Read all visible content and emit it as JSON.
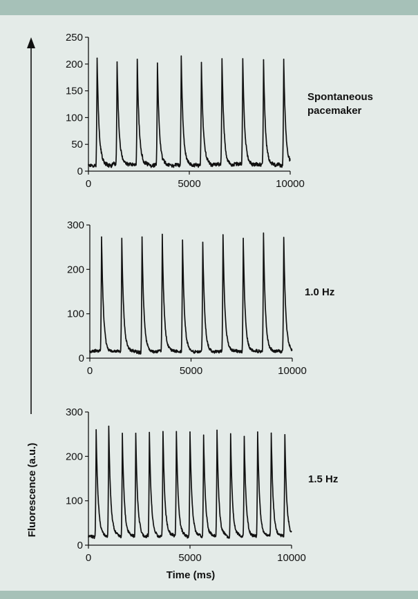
{
  "chart_data": {
    "type": "line",
    "y_axis_title": "Fluorescence (a.u.)",
    "x_axis_title": "Time (ms)",
    "panels": [
      {
        "label_lines": [
          "Spontaneous",
          "pacemaker"
        ],
        "xlim": [
          0,
          10000
        ],
        "ylim": [
          0,
          250
        ],
        "yticks": [
          0,
          50,
          100,
          150,
          200,
          250
        ],
        "xticks": [
          0,
          5000,
          10000
        ],
        "baseline": 12,
        "spikes": [
          {
            "t": 430,
            "peak": 211
          },
          {
            "t": 1420,
            "peak": 204
          },
          {
            "t": 2420,
            "peak": 209
          },
          {
            "t": 3420,
            "peak": 200
          },
          {
            "t": 4600,
            "peak": 215
          },
          {
            "t": 5600,
            "peak": 203
          },
          {
            "t": 6620,
            "peak": 210
          },
          {
            "t": 7650,
            "peak": 210
          },
          {
            "t": 8680,
            "peak": 208
          },
          {
            "t": 9680,
            "peak": 209
          }
        ]
      },
      {
        "label_lines": [
          "1.0 Hz"
        ],
        "xlim": [
          0,
          10000
        ],
        "ylim": [
          0,
          300
        ],
        "yticks": [
          0,
          100,
          200,
          300
        ],
        "xticks": [
          0,
          5000,
          10000
        ],
        "baseline": 15,
        "spikes": [
          {
            "t": 580,
            "peak": 273
          },
          {
            "t": 1580,
            "peak": 270
          },
          {
            "t": 2580,
            "peak": 273
          },
          {
            "t": 3580,
            "peak": 279
          },
          {
            "t": 4580,
            "peak": 266
          },
          {
            "t": 5580,
            "peak": 261
          },
          {
            "t": 6580,
            "peak": 278
          },
          {
            "t": 7580,
            "peak": 270
          },
          {
            "t": 8580,
            "peak": 278
          },
          {
            "t": 9580,
            "peak": 272
          }
        ]
      },
      {
        "label_lines": [
          "1.5 Hz"
        ],
        "xlim": [
          0,
          10000
        ],
        "ylim": [
          0,
          300
        ],
        "yticks": [
          0,
          100,
          200,
          300
        ],
        "xticks": [
          0,
          5000,
          10000
        ],
        "baseline": 20,
        "spikes": [
          {
            "t": 380,
            "peak": 260
          },
          {
            "t": 1000,
            "peak": 268
          },
          {
            "t": 1670,
            "peak": 252
          },
          {
            "t": 2330,
            "peak": 252
          },
          {
            "t": 3000,
            "peak": 254
          },
          {
            "t": 3670,
            "peak": 256
          },
          {
            "t": 4330,
            "peak": 256
          },
          {
            "t": 5000,
            "peak": 255
          },
          {
            "t": 5670,
            "peak": 248
          },
          {
            "t": 6330,
            "peak": 259
          },
          {
            "t": 7000,
            "peak": 251
          },
          {
            "t": 7670,
            "peak": 245
          },
          {
            "t": 8330,
            "peak": 255
          },
          {
            "t": 9000,
            "peak": 251
          },
          {
            "t": 9670,
            "peak": 249
          }
        ]
      }
    ]
  },
  "colors": {
    "background": "#e4ebe8",
    "band": "#a6c1b8",
    "trace": "#111111"
  }
}
